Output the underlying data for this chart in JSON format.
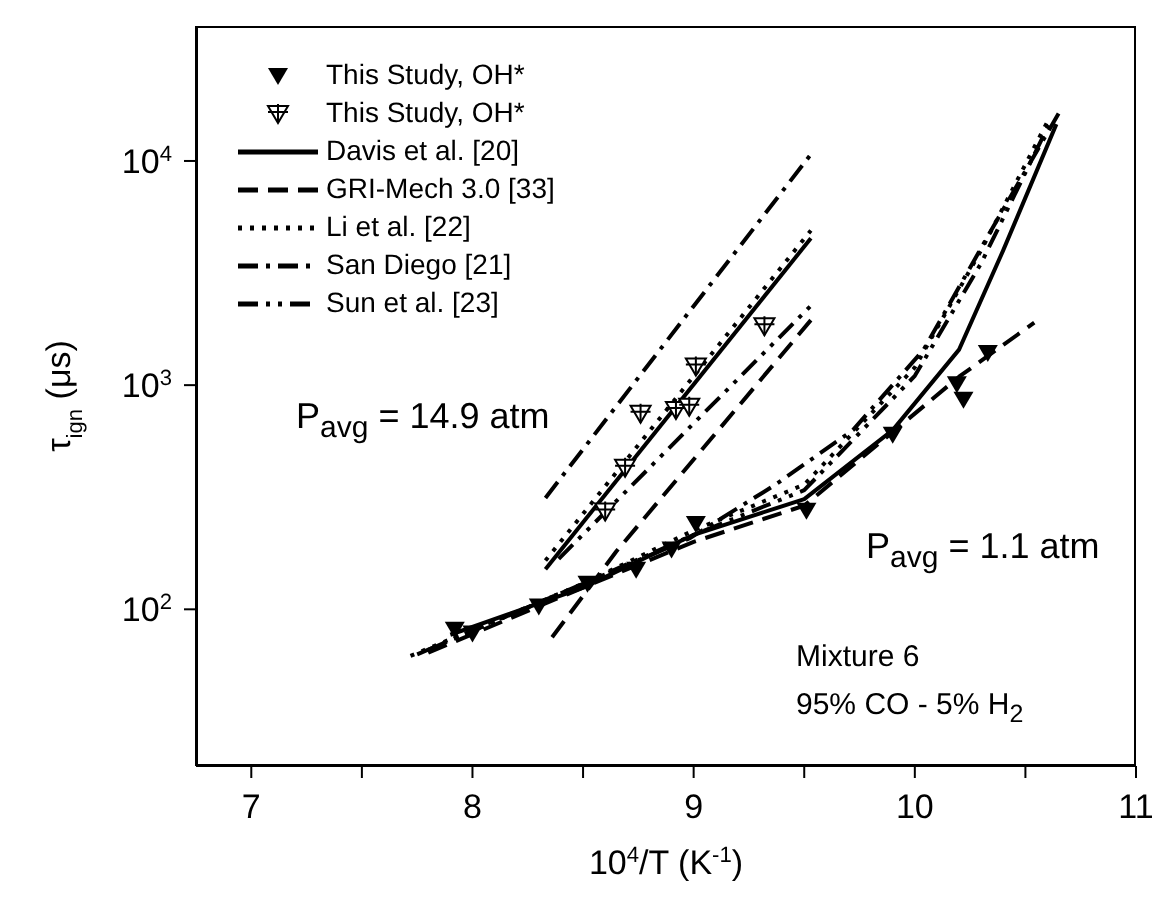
{
  "chart_data": {
    "type": "line",
    "xlabel": "10$^{4}$/T (K$^{-1}$)",
    "ylabel": "τ$_{ign}$ (μs)",
    "annotations": [
      "P$_{avg}$ = 14.9 atm",
      "P$_{avg}$ = 1.1 atm",
      "Mixture 6",
      "95% CO - 5% H$_{2}$"
    ],
    "xlim": [
      6.75,
      11
    ],
    "xticks": [
      7,
      {
        "value": 7.5,
        "label": null
      },
      8,
      {
        "value": 8.5,
        "label": null
      },
      9,
      {
        "value": 9.5,
        "label": null
      },
      10,
      {
        "value": 10.5,
        "label": null
      },
      11
    ],
    "ylim": [
      20,
      40000
    ],
    "yticks": [
      {
        "value": 100,
        "label": "10$^{2}$"
      },
      {
        "value": 1000,
        "label": "10$^{3}$"
      },
      {
        "value": 10000,
        "label": "10$^{4}$"
      }
    ],
    "log": "y",
    "legend": "top left",
    "series": [
      {
        "name": "This Study, OH*",
        "type": "scatter",
        "marker": "triangle",
        "color": "#000000",
        "x": [
          7.92,
          8.0,
          8.3,
          8.52,
          8.74,
          8.9,
          9.01,
          9.51,
          9.9,
          10.19,
          10.22,
          10.33
        ],
        "values": [
          81,
          78,
          103,
          130,
          150,
          185,
          240,
          275,
          600,
          1010,
          860,
          1390
        ]
      },
      {
        "name": "This Study, OH*",
        "type": "scatter",
        "marker": "triangle",
        "color": "#000000",
        "x": [
          8.6,
          8.69,
          8.76,
          8.92,
          8.98,
          9.01,
          9.32
        ],
        "values": [
          273,
          428,
          745,
          775,
          800,
          1210,
          1830
        ]
      },
      {
        "name": "Davis et al. [20]",
        "line_style": "solid",
        "color": "#000000",
        "x": [
          7.9,
          8.5,
          9.0,
          9.5,
          9.9,
          10.2,
          10.4,
          10.64
        ],
        "values": [
          77,
          125,
          215,
          310,
          630,
          1440,
          4000,
          14600
        ]
      },
      {
        "name": "GRI-Mech 3.0 [33]",
        "line_style": "dashed",
        "color": "#000000",
        "x": [
          7.8,
          8.5,
          9.0,
          9.5,
          10.2,
          10.54
        ],
        "values": [
          64,
          125,
          200,
          290,
          1090,
          1900
        ]
      },
      {
        "name": "Li et al. [22]",
        "line_style": "dotted",
        "color": "#000000",
        "x": [
          7.72,
          8.5,
          9.0,
          9.5,
          10.0,
          10.3,
          10.6
        ],
        "values": [
          62,
          130,
          225,
          360,
          1200,
          4000,
          15000
        ]
      },
      {
        "name": "San Diego [21]",
        "line_style": "dashdot",
        "color": "#000000",
        "x": [
          7.8,
          8.5,
          8.98,
          9.37,
          9.72,
          10.04,
          10.35,
          10.65
        ],
        "values": [
          66,
          130,
          207,
          360,
          630,
          1440,
          5000,
          16300
        ]
      },
      {
        "name": "Sun et al. [23]",
        "line_style": "dashdotdot",
        "color": "#000000",
        "x": [
          7.75,
          8.5,
          9.0,
          9.5,
          10.0,
          10.3,
          10.62
        ],
        "values": [
          63,
          130,
          215,
          340,
          1100,
          3500,
          15500
        ]
      },
      {
        "line_style": "solid",
        "color": "#000000",
        "x": [
          8.33,
          9.53
        ],
        "values": [
          151,
          4520
        ]
      },
      {
        "line_style": "dashed",
        "color": "#000000",
        "x": [
          8.36,
          8.65,
          9.53
        ],
        "values": [
          75,
          181,
          1950
        ]
      },
      {
        "line_style": "dotted",
        "color": "#000000",
        "x": [
          8.33,
          9.53
        ],
        "values": [
          165,
          4900
        ]
      },
      {
        "line_style": "dashdot",
        "color": "#000000",
        "x": [
          8.33,
          9.53
        ],
        "values": [
          314,
          10700
        ]
      },
      {
        "line_style": "dashdotdot",
        "color": "#000000",
        "x": [
          8.39,
          9.53
        ],
        "values": [
          168,
          2260
        ]
      }
    ]
  }
}
